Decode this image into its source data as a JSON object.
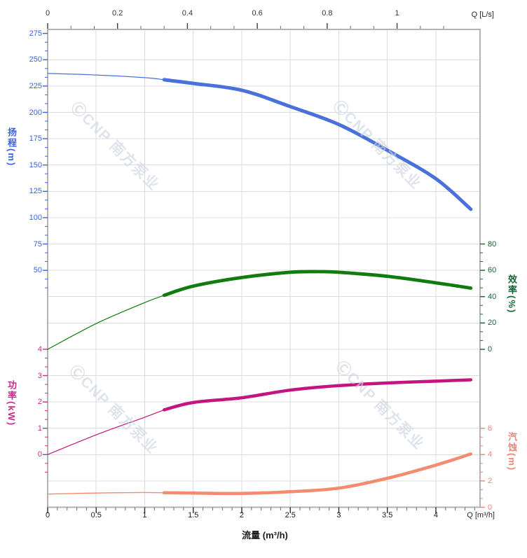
{
  "watermark": {
    "text": "ⒸCNP 南方泵业"
  },
  "chart_data": {
    "type": "line",
    "title": "",
    "grid": true,
    "top_axis": {
      "label": "Q [L/s]",
      "ticks": [
        0,
        0.2,
        0.4,
        0.6,
        0.8,
        1
      ],
      "m3h_per_unit": 3.6,
      "tick_color": "#3a3a3a"
    },
    "bottom_axis": {
      "label": "Q [m³/h]",
      "title": "流量 (m³/h)",
      "ticks": [
        0,
        0.5,
        1,
        1.5,
        2,
        2.5,
        3,
        3.5,
        4
      ],
      "minor_step": 0.1,
      "max": 4.455,
      "tick_color": "#2b2b2b"
    },
    "axes": [
      {
        "id": "head",
        "side": "left",
        "title": "扬程(m)",
        "color": "#3a64dd",
        "ticks": [
          275,
          250,
          225,
          200,
          175,
          150,
          125,
          100,
          75,
          50
        ],
        "max": 275,
        "step": 25,
        "grid_row": 0,
        "extra_minors_after": 2
      },
      {
        "id": "eff",
        "side": "right",
        "title": "效率(%)",
        "color": "#156535",
        "ticks": [
          80,
          60,
          40,
          20,
          0
        ],
        "max": 80,
        "step": 20,
        "grid_row": 8,
        "extra_minors_after": 0
      },
      {
        "id": "power",
        "side": "left",
        "title": "功率(kW)",
        "color": "#cb2a8d",
        "ticks": [
          4,
          3,
          2,
          1,
          0
        ],
        "max": 4,
        "step": 1,
        "grid_row": 12,
        "extra_minors_after": 2
      },
      {
        "id": "npsh",
        "side": "right",
        "title": "汽蚀(m)",
        "color": "#f4836d",
        "ticks": [
          6,
          4,
          2,
          0
        ],
        "max": 6,
        "step": 2,
        "grid_row": 15,
        "extra_minors_after": 0
      }
    ],
    "series": [
      {
        "id": "head-curve",
        "name": "扬程",
        "axis": "head",
        "color": "#4a70dc",
        "split_q": 1.2,
        "thin": 1.2,
        "thick": 5.0,
        "points": [
          [
            0,
            237
          ],
          [
            0.5,
            235.5
          ],
          [
            1,
            233
          ],
          [
            1.2,
            231
          ],
          [
            1.5,
            227.5
          ],
          [
            2,
            221
          ],
          [
            2.5,
            205.5
          ],
          [
            3,
            188.5
          ],
          [
            3.5,
            164
          ],
          [
            4,
            137
          ],
          [
            4.36,
            108
          ]
        ]
      },
      {
        "id": "eff-curve",
        "name": "效率",
        "axis": "eff",
        "color": "#107c10",
        "split_q": 1.2,
        "thin": 1.2,
        "thick": 4.8,
        "points": [
          [
            0,
            0
          ],
          [
            0.5,
            19.5
          ],
          [
            1,
            35.5
          ],
          [
            1.2,
            41
          ],
          [
            1.5,
            48
          ],
          [
            2,
            54.5
          ],
          [
            2.5,
            58.5
          ],
          [
            2.8,
            59
          ],
          [
            3,
            58.5
          ],
          [
            3.5,
            55.5
          ],
          [
            4,
            50.5
          ],
          [
            4.36,
            46.5
          ]
        ]
      },
      {
        "id": "power-curve",
        "name": "功率",
        "axis": "power",
        "color": "#c4147f",
        "split_q": 1.2,
        "thin": 1.2,
        "thick": 4.5,
        "points": [
          [
            0,
            0
          ],
          [
            0.5,
            0.75
          ],
          [
            1,
            1.42
          ],
          [
            1.2,
            1.7
          ],
          [
            1.5,
            1.98
          ],
          [
            2,
            2.16
          ],
          [
            2.5,
            2.45
          ],
          [
            3,
            2.62
          ],
          [
            3.5,
            2.72
          ],
          [
            4,
            2.79
          ],
          [
            4.36,
            2.84
          ]
        ]
      },
      {
        "id": "npsh-curve",
        "name": "汽蚀",
        "axis": "npsh",
        "color": "#f58b6e",
        "split_q": 1.2,
        "thin": 1.4,
        "thick": 4.5,
        "points": [
          [
            0,
            1.0
          ],
          [
            0.5,
            1.08
          ],
          [
            1,
            1.12
          ],
          [
            1.2,
            1.1
          ],
          [
            1.5,
            1.08
          ],
          [
            2,
            1.05
          ],
          [
            2.5,
            1.18
          ],
          [
            3,
            1.45
          ],
          [
            3.5,
            2.2
          ],
          [
            4,
            3.2
          ],
          [
            4.36,
            4.05
          ]
        ]
      }
    ],
    "colors": {
      "grid": "#dcdcdc",
      "border": "#b3b3b3"
    }
  }
}
